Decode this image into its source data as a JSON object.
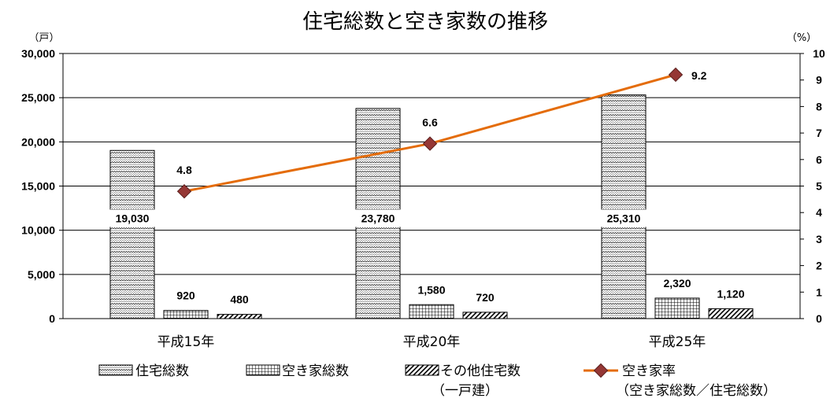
{
  "chart_data": {
    "type": "bar",
    "title": "住宅総数と空き家数の推移",
    "categories": [
      "平成15年",
      "平成20年",
      "平成25年"
    ],
    "y_left": {
      "unit": "（戸）",
      "range": [
        0,
        30000
      ],
      "ticks": [
        "0",
        "5,000",
        "10,000",
        "15,000",
        "20,000",
        "25,000",
        "30,000"
      ]
    },
    "y_right": {
      "unit": "（%）",
      "range": [
        0,
        10
      ],
      "ticks": [
        "0",
        "1",
        "2",
        "3",
        "4",
        "5",
        "6",
        "7",
        "8",
        "9",
        "10"
      ]
    },
    "grid": true,
    "legend_position": "bottom",
    "series": [
      {
        "name": "住宅総数",
        "type": "bar",
        "axis": "left",
        "pattern": "dots",
        "values": [
          19030,
          23780,
          25310
        ],
        "labels": [
          "19,030",
          "23,780",
          "25,310"
        ]
      },
      {
        "name": "空き家総数",
        "type": "bar",
        "axis": "left",
        "pattern": "grid",
        "values": [
          920,
          1580,
          2320
        ],
        "labels": [
          "920",
          "1,580",
          "2,320"
        ]
      },
      {
        "name": "その他住宅数",
        "name_sub": "（一戸建）",
        "type": "bar",
        "axis": "left",
        "pattern": "diagonal",
        "values": [
          480,
          720,
          1120
        ],
        "labels": [
          "480",
          "720",
          "1,120"
        ]
      },
      {
        "name": "空き家率",
        "name_sub": "（空き家総数／住宅総数）",
        "type": "line",
        "axis": "right",
        "color": "#E46C0A",
        "marker_color": "#953735",
        "values": [
          4.8,
          6.6,
          9.2
        ],
        "labels": [
          "4.8",
          "6.6",
          "9.2"
        ]
      }
    ]
  }
}
